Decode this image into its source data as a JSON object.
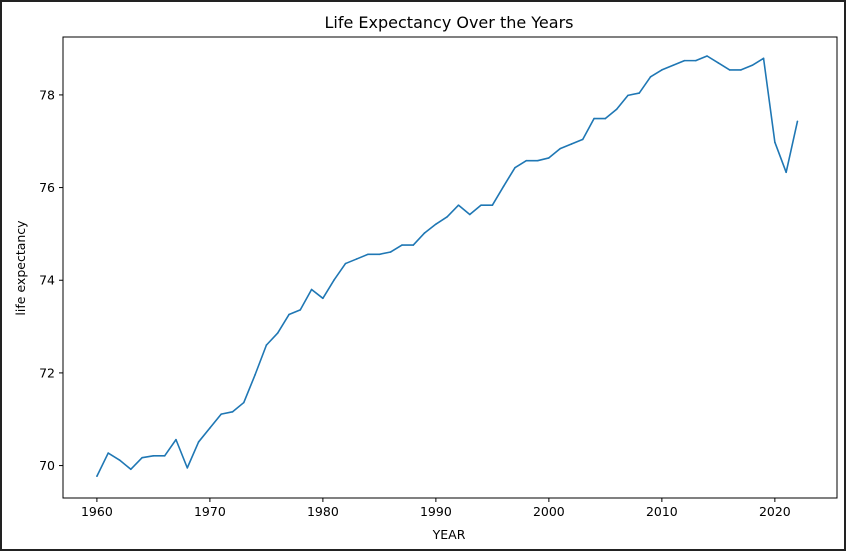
{
  "chart_data": {
    "type": "line",
    "title": "Life Expectancy Over the Years",
    "xlabel": "YEAR",
    "ylabel": "life expectancy",
    "xlim": [
      1957,
      2025.5
    ],
    "ylim": [
      69.3,
      79.25
    ],
    "xticks": [
      1960,
      1970,
      1980,
      1990,
      2000,
      2010,
      2020
    ],
    "yticks": [
      70,
      72,
      74,
      76,
      78
    ],
    "grid": false,
    "line_color": "#1f77b4",
    "x": [
      1960,
      1961,
      1962,
      1963,
      1964,
      1965,
      1966,
      1967,
      1968,
      1969,
      1970,
      1971,
      1972,
      1973,
      1974,
      1975,
      1976,
      1977,
      1978,
      1979,
      1980,
      1981,
      1982,
      1983,
      1984,
      1985,
      1986,
      1987,
      1988,
      1989,
      1990,
      1991,
      1992,
      1993,
      1994,
      1995,
      1996,
      1997,
      1998,
      1999,
      2000,
      2001,
      2002,
      2003,
      2004,
      2005,
      2006,
      2007,
      2008,
      2009,
      2010,
      2011,
      2012,
      2013,
      2014,
      2015,
      2016,
      2017,
      2018,
      2019,
      2020,
      2021,
      2022
    ],
    "y": [
      69.77,
      70.27,
      70.12,
      69.92,
      70.17,
      70.21,
      70.21,
      70.56,
      69.95,
      70.51,
      70.81,
      71.11,
      71.16,
      71.36,
      71.96,
      72.6,
      72.86,
      73.26,
      73.36,
      73.8,
      73.61,
      74.01,
      74.36,
      74.46,
      74.56,
      74.56,
      74.61,
      74.76,
      74.76,
      75.02,
      75.21,
      75.37,
      75.62,
      75.42,
      75.62,
      75.62,
      76.03,
      76.43,
      76.58,
      76.58,
      76.64,
      76.84,
      76.94,
      77.04,
      77.49,
      77.49,
      77.69,
      77.99,
      78.04,
      78.39,
      78.54,
      78.64,
      78.74,
      78.74,
      78.84,
      78.69,
      78.54,
      78.54,
      78.64,
      78.79,
      76.98,
      76.33,
      77.43
    ]
  }
}
